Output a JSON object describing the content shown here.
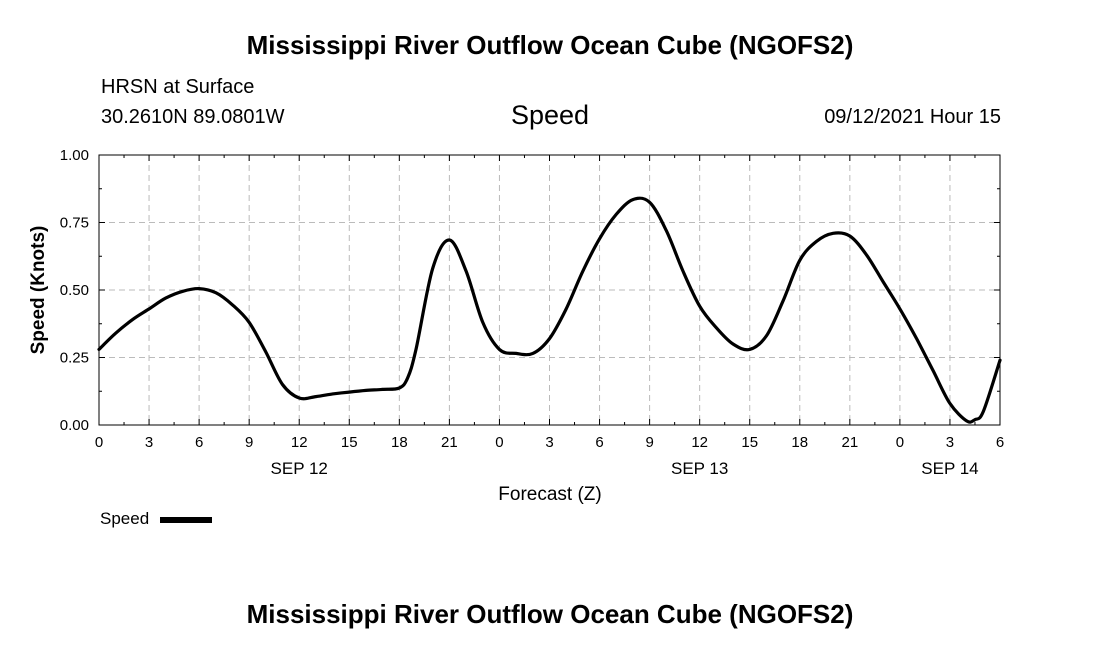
{
  "header": {
    "title": "Mississippi River Outflow Ocean Cube (NGOFS2)",
    "station": "HRSN at Surface",
    "coords": "30.2610N  89.0801W",
    "variable": "Speed",
    "timestamp": "09/12/2021 Hour 15"
  },
  "footer": {
    "title": "Mississippi River Outflow Ocean Cube (NGOFS2)"
  },
  "legend": {
    "label": "Speed"
  },
  "colors": {
    "line": "#000000",
    "grid": "#bbbbbb",
    "axis": "#000000"
  },
  "chart_data": {
    "type": "line",
    "title": "Speed",
    "xlabel": "Forecast (Z)",
    "ylabel": "Speed (Knots)",
    "xlim": [
      0,
      54
    ],
    "ylim": [
      0,
      1
    ],
    "grid": true,
    "legend_position": "bottom-left",
    "x_ticks": [
      {
        "x": 0,
        "label": "0"
      },
      {
        "x": 3,
        "label": "3"
      },
      {
        "x": 6,
        "label": "6"
      },
      {
        "x": 9,
        "label": "9"
      },
      {
        "x": 12,
        "label": "12"
      },
      {
        "x": 15,
        "label": "15"
      },
      {
        "x": 18,
        "label": "18"
      },
      {
        "x": 21,
        "label": "21"
      },
      {
        "x": 24,
        "label": "0"
      },
      {
        "x": 27,
        "label": "3"
      },
      {
        "x": 30,
        "label": "6"
      },
      {
        "x": 33,
        "label": "9"
      },
      {
        "x": 36,
        "label": "12"
      },
      {
        "x": 39,
        "label": "15"
      },
      {
        "x": 42,
        "label": "18"
      },
      {
        "x": 45,
        "label": "21"
      },
      {
        "x": 48,
        "label": "0"
      },
      {
        "x": 51,
        "label": "3"
      },
      {
        "x": 54,
        "label": "6"
      }
    ],
    "y_ticks": [
      {
        "y": 0,
        "label": "0.00"
      },
      {
        "y": 0.25,
        "label": "0.25"
      },
      {
        "y": 0.5,
        "label": "0.50"
      },
      {
        "y": 0.75,
        "label": "0.75"
      },
      {
        "y": 1,
        "label": "1.00"
      }
    ],
    "date_labels": [
      {
        "x": 12,
        "label": "SEP 12"
      },
      {
        "x": 36,
        "label": "SEP 13"
      },
      {
        "x": 51,
        "label": "SEP 14"
      }
    ],
    "series": [
      {
        "name": "Speed",
        "x": [
          0,
          1,
          2,
          3,
          4,
          5,
          6,
          7,
          8,
          9,
          10,
          11,
          12,
          13,
          14,
          15,
          16,
          17,
          18,
          18.5,
          19,
          20,
          21,
          22,
          23,
          24,
          25,
          26,
          27,
          28,
          29,
          30,
          31,
          32,
          33,
          34,
          35,
          36,
          37,
          38,
          39,
          40,
          41,
          42,
          43,
          44,
          45,
          46,
          47,
          48,
          49,
          50,
          51,
          52,
          52.5,
          53,
          54
        ],
        "y": [
          0.28,
          0.34,
          0.39,
          0.43,
          0.47,
          0.495,
          0.505,
          0.49,
          0.445,
          0.38,
          0.27,
          0.15,
          0.1,
          0.105,
          0.115,
          0.122,
          0.128,
          0.132,
          0.137,
          0.175,
          0.28,
          0.58,
          0.685,
          0.57,
          0.38,
          0.28,
          0.265,
          0.265,
          0.32,
          0.43,
          0.57,
          0.69,
          0.78,
          0.835,
          0.825,
          0.72,
          0.57,
          0.44,
          0.36,
          0.3,
          0.28,
          0.33,
          0.46,
          0.61,
          0.68,
          0.71,
          0.7,
          0.63,
          0.53,
          0.43,
          0.32,
          0.2,
          0.08,
          0.015,
          0.02,
          0.05,
          0.24
        ]
      }
    ]
  }
}
